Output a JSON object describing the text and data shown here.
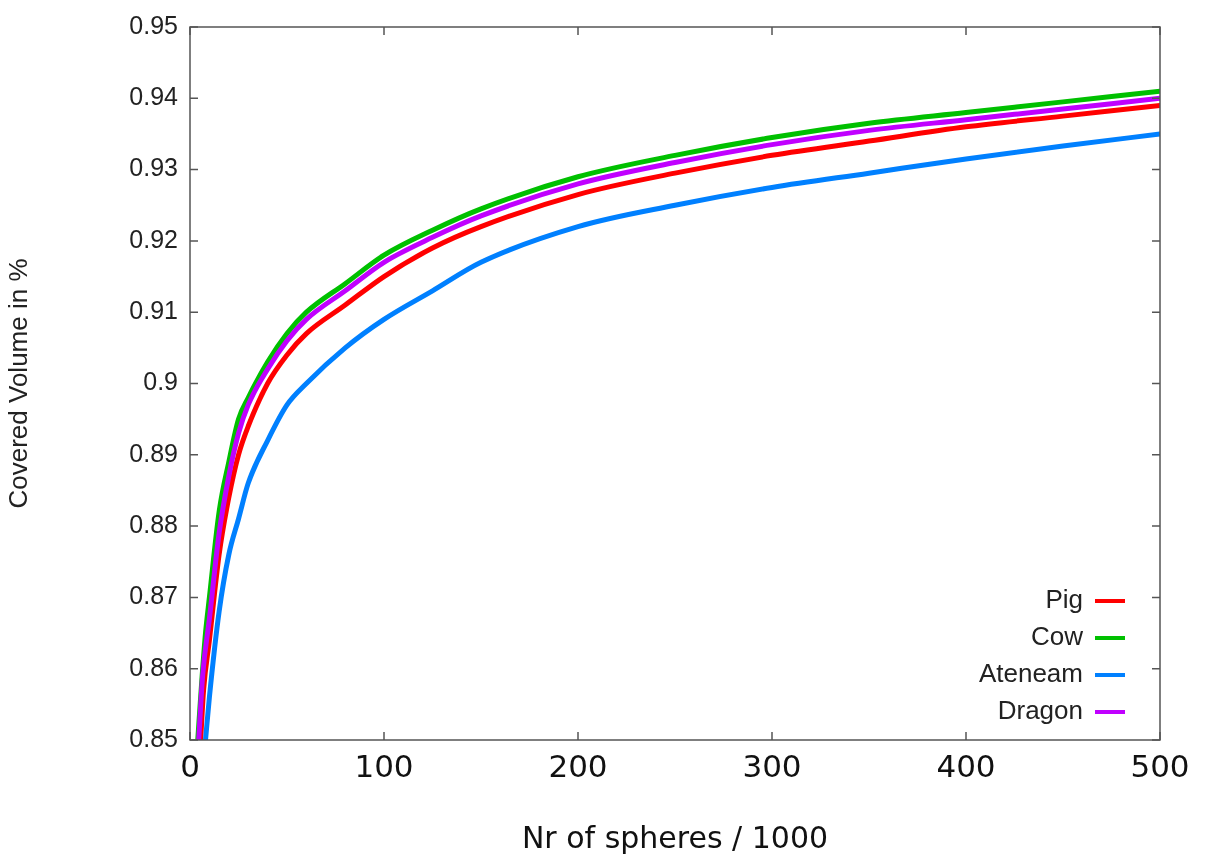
{
  "chart_data": {
    "type": "line",
    "xlabel": "Nr of spheres / 1000",
    "ylabel": "Covered Volume in %",
    "xlim": [
      0,
      500
    ],
    "xticks": [
      0,
      100,
      200,
      300,
      400,
      500
    ],
    "ylim": [
      0.85,
      0.95
    ],
    "yticks": [
      0.85,
      0.86,
      0.87,
      0.88,
      0.89,
      0.9,
      0.91,
      0.92,
      0.93,
      0.94,
      0.95
    ],
    "grid": false,
    "legend": "bottom right",
    "marker": "none",
    "line_style": "solid",
    "series": [
      {
        "name": "Pig",
        "color": "#ff0000",
        "x": [
          5.5,
          7,
          10,
          15,
          20,
          25,
          30,
          40,
          50,
          60,
          80,
          100,
          125,
          150,
          200,
          250,
          300,
          350,
          400,
          450,
          500
        ],
        "values": [
          0.85,
          0.857,
          0.864,
          0.876,
          0.884,
          0.89,
          0.894,
          0.9,
          0.904,
          0.907,
          0.911,
          0.915,
          0.919,
          0.922,
          0.9265,
          0.9295,
          0.932,
          0.934,
          0.936,
          0.9375,
          0.939
        ]
      },
      {
        "name": "Cow",
        "color": "#00c000",
        "x": [
          4,
          6,
          8,
          10,
          15,
          20,
          25,
          30,
          40,
          50,
          60,
          80,
          100,
          125,
          150,
          200,
          250,
          300,
          350,
          400,
          450,
          500
        ],
        "values": [
          0.85,
          0.858,
          0.865,
          0.87,
          0.882,
          0.889,
          0.895,
          0.898,
          0.903,
          0.907,
          0.91,
          0.914,
          0.918,
          0.9215,
          0.9245,
          0.929,
          0.932,
          0.9345,
          0.9365,
          0.938,
          0.9395,
          0.941
        ]
      },
      {
        "name": "Ateneam",
        "color": "#0080ff",
        "x": [
          8,
          10,
          15,
          20,
          25,
          30,
          40,
          50,
          60,
          80,
          100,
          125,
          150,
          200,
          250,
          300,
          350,
          400,
          450,
          500
        ],
        "values": [
          0.85,
          0.856,
          0.868,
          0.876,
          0.881,
          0.886,
          0.892,
          0.897,
          0.9,
          0.905,
          0.909,
          0.913,
          0.917,
          0.922,
          0.925,
          0.9275,
          0.9295,
          0.9315,
          0.9333,
          0.935
        ]
      },
      {
        "name": "Dragon",
        "color": "#c000ff",
        "x": [
          4.5,
          6.5,
          10,
          15,
          20,
          25,
          30,
          40,
          50,
          60,
          80,
          100,
          125,
          150,
          200,
          250,
          300,
          350,
          400,
          450,
          500
        ],
        "values": [
          0.85,
          0.859,
          0.867,
          0.879,
          0.887,
          0.893,
          0.897,
          0.902,
          0.906,
          0.909,
          0.913,
          0.917,
          0.9205,
          0.9235,
          0.928,
          0.931,
          0.9335,
          0.9355,
          0.937,
          0.9385,
          0.94
        ]
      }
    ]
  }
}
